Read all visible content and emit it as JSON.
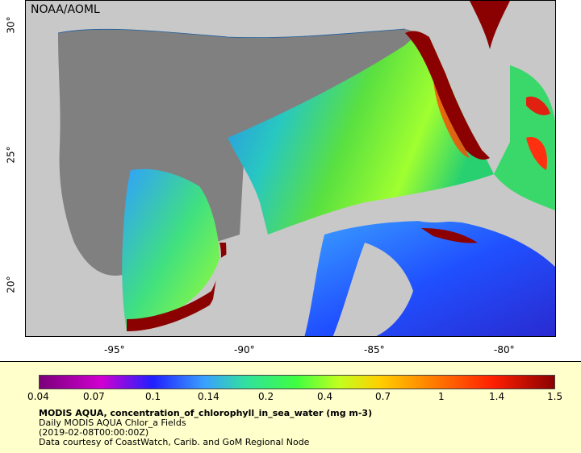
{
  "map": {
    "organization": "NOAA/AOML",
    "lat_ticks": [
      "30°",
      "25°",
      "20°"
    ],
    "lon_ticks": [
      "-95°",
      "-90°",
      "-85°",
      "-80°"
    ]
  },
  "legend": {
    "ticks": [
      "0.04",
      "0.07",
      "0.1",
      "0.14",
      "0.2",
      "0.4",
      "0.7",
      "1",
      "1.4",
      "1.5"
    ],
    "title": "MODIS AQUA, concentration_of_chlorophyll_in_sea_water (mg m-3)",
    "subtitle": "Daily MODIS AQUA Chlor_a Fields",
    "date": "(2019-02-08T00:00:00Z)",
    "credit": "Data courtesy of CoastWatch, Carib. and GoM Regional Node"
  },
  "colors": {
    "land": "#c8c8c8",
    "no_data": "#808080",
    "panel_bg": "#ffffcc"
  }
}
